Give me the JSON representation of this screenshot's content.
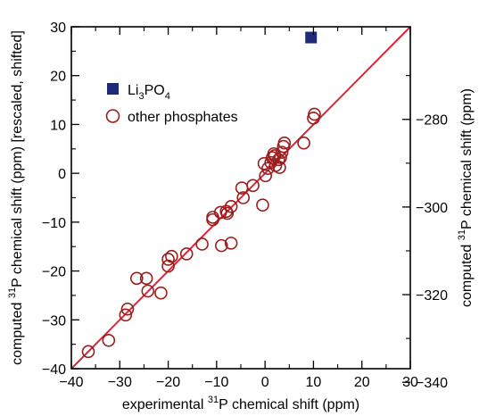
{
  "chart_data": {
    "type": "scatter",
    "title": "",
    "xlabel_pre": "experimental ",
    "xlabel_sup": "31",
    "xlabel_post": "P chemical shift (ppm)",
    "ylabel_pre": "computed ",
    "ylabel_sup": "31",
    "ylabel_post": "P chemical shift (ppm) [rescaled, shifted]",
    "y2label_pre": "computed ",
    "y2label_sup": "31",
    "y2label_post": "P chemical shift (ppm)",
    "xlim": [
      -40,
      30
    ],
    "ylim": [
      -40,
      30
    ],
    "xticks": [
      -40,
      -30,
      -20,
      -10,
      0,
      10,
      20,
      30
    ],
    "yticks": [
      -40,
      -30,
      -20,
      -10,
      0,
      10,
      20,
      30
    ],
    "y2ticks": [
      -280,
      -300,
      -320,
      -340
    ],
    "y2_to_y": {
      "slope": 0.897,
      "intercept": 262.2
    },
    "legend_position": "top-left",
    "fit_line": {
      "x": [
        -40,
        30
      ],
      "y": [
        -40,
        30
      ],
      "color": "#d8263a"
    },
    "series": [
      {
        "name_main": "Li",
        "name_sub1": "3",
        "name_mid": "PO",
        "name_sub2": "4",
        "marker": "square",
        "color": "#1f2a7a",
        "points": [
          [
            9.5,
            27.8
          ]
        ]
      },
      {
        "name": "other phosphates",
        "marker": "open-circle",
        "color": "#9b1c1c",
        "points": [
          [
            -36.5,
            -36.5
          ],
          [
            -32.3,
            -34.2
          ],
          [
            -28.8,
            -29.0
          ],
          [
            -28.4,
            -27.8
          ],
          [
            -26.5,
            -21.5
          ],
          [
            -24.5,
            -21.5
          ],
          [
            -24.2,
            -24.1
          ],
          [
            -21.5,
            -24.5
          ],
          [
            -20.0,
            -19.0
          ],
          [
            -20.0,
            -17.6
          ],
          [
            -19.3,
            -17.0
          ],
          [
            -16.2,
            -16.5
          ],
          [
            -13.0,
            -14.5
          ],
          [
            -10.8,
            -9.5
          ],
          [
            -10.8,
            -9.0
          ],
          [
            -9.0,
            -14.8
          ],
          [
            -9.2,
            -8.0
          ],
          [
            -8.0,
            -7.8
          ],
          [
            -7.8,
            -8.2
          ],
          [
            -7.0,
            -6.8
          ],
          [
            -7.0,
            -14.3
          ],
          [
            -4.8,
            -3.0
          ],
          [
            -4.5,
            -5.0
          ],
          [
            -2.5,
            -2.5
          ],
          [
            -0.5,
            -6.5
          ],
          [
            -0.2,
            2.0
          ],
          [
            0.1,
            -0.5
          ],
          [
            0.6,
            1.0
          ],
          [
            1.2,
            2.2
          ],
          [
            1.5,
            3.2
          ],
          [
            1.8,
            4.0
          ],
          [
            2.0,
            3.6
          ],
          [
            2.2,
            1.6
          ],
          [
            2.8,
            2.8
          ],
          [
            3.0,
            1.2
          ],
          [
            3.2,
            3.2
          ],
          [
            3.5,
            4.3
          ],
          [
            3.8,
            5.5
          ],
          [
            4.0,
            6.2
          ],
          [
            8.0,
            6.2
          ],
          [
            10.0,
            11.3
          ],
          [
            10.2,
            12.1
          ]
        ]
      }
    ]
  }
}
